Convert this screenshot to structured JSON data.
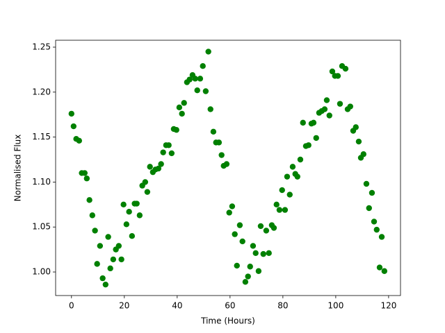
{
  "chart_data": {
    "type": "scatter",
    "xlabel": "Time (Hours)",
    "ylabel": "Normalised Flux",
    "color": "#008000",
    "xlim": [
      -6,
      124.5
    ],
    "ylim": [
      0.9738,
      1.2577
    ],
    "xticks": [
      0,
      20,
      40,
      60,
      80,
      100,
      120
    ],
    "yticks": [
      {
        "value": 1.0,
        "label": "1.00"
      },
      {
        "value": 1.05,
        "label": "1.05"
      },
      {
        "value": 1.1,
        "label": "1.10"
      },
      {
        "value": 1.15,
        "label": "1.15"
      },
      {
        "value": 1.2,
        "label": "1.20"
      },
      {
        "value": 1.25,
        "label": "1.25"
      }
    ],
    "grid": false,
    "x": [
      0,
      0.8,
      1.8,
      2.9,
      3.9,
      5,
      5.8,
      6.8,
      7.9,
      8.9,
      9.7,
      10.8,
      11.8,
      12.9,
      13.9,
      14.7,
      15.8,
      16.8,
      17.9,
      18.9,
      19.7,
      20.8,
      21.8,
      22.9,
      23.9,
      24.7,
      25.8,
      26.8,
      27.9,
      28.7,
      29.7,
      30.8,
      31.8,
      32.9,
      33.9,
      34.7,
      35.8,
      36.8,
      37.9,
      38.7,
      39.7,
      40.8,
      41.8,
      42.6,
      43.7,
      44.7,
      45.8,
      46.8,
      47.6,
      48.7,
      49.7,
      50.8,
      51.8,
      52.6,
      53.7,
      54.7,
      55.8,
      56.8,
      57.6,
      58.7,
      59.7,
      60.8,
      61.8,
      62.6,
      63.7,
      64.7,
      65.8,
      66.8,
      67.6,
      68.7,
      69.7,
      70.8,
      71.6,
      72.6,
      73.7,
      74.7,
      75.8,
      76.6,
      77.6,
      78.7,
      79.7,
      80.8,
      81.6,
      82.6,
      83.7,
      84.7,
      85.5,
      86.6,
      87.6,
      88.7,
      89.7,
      90.8,
      91.6,
      92.6,
      93.7,
      94.7,
      95.8,
      96.6,
      97.6,
      98.7,
      99.7,
      100.8,
      101.6,
      102.4,
      103.7,
      104.5,
      105.5,
      106.6,
      107.6,
      108.7,
      109.5,
      110.5,
      111.6,
      112.6,
      113.7,
      114.5,
      115.5,
      116.6,
      117.4,
      118.4
    ],
    "values": [
      1.176,
      1.162,
      1.148,
      1.146,
      1.11,
      1.11,
      1.104,
      1.08,
      1.063,
      1.046,
      1.009,
      1.029,
      0.993,
      0.986,
      1.039,
      1.004,
      1.014,
      1.025,
      1.029,
      1.014,
      1.075,
      1.053,
      1.067,
      1.04,
      1.076,
      1.076,
      1.063,
      1.096,
      1.1,
      1.089,
      1.117,
      1.111,
      1.114,
      1.115,
      1.12,
      1.133,
      1.141,
      1.141,
      1.132,
      1.159,
      1.158,
      1.183,
      1.176,
      1.188,
      1.211,
      1.214,
      1.219,
      1.215,
      1.202,
      1.215,
      1.229,
      1.201,
      1.245,
      1.181,
      1.156,
      1.144,
      1.144,
      1.13,
      1.118,
      1.12,
      1.066,
      1.073,
      1.042,
      1.007,
      1.052,
      1.034,
      0.989,
      0.995,
      1.006,
      1.029,
      1.021,
      1.001,
      1.051,
      1.02,
      1.046,
      1.021,
      1.052,
      1.049,
      1.075,
      1.069,
      1.091,
      1.069,
      1.106,
      1.086,
      1.117,
      1.109,
      1.106,
      1.125,
      1.166,
      1.14,
      1.141,
      1.165,
      1.166,
      1.149,
      1.177,
      1.179,
      1.181,
      1.191,
      1.174,
      1.223,
      1.218,
      1.218,
      1.187,
      1.229,
      1.226,
      1.181,
      1.184,
      1.157,
      1.161,
      1.145,
      1.127,
      1.131,
      1.098,
      1.071,
      1.088,
      1.056,
      1.047,
      1.005,
      1.039,
      1.001
    ]
  }
}
